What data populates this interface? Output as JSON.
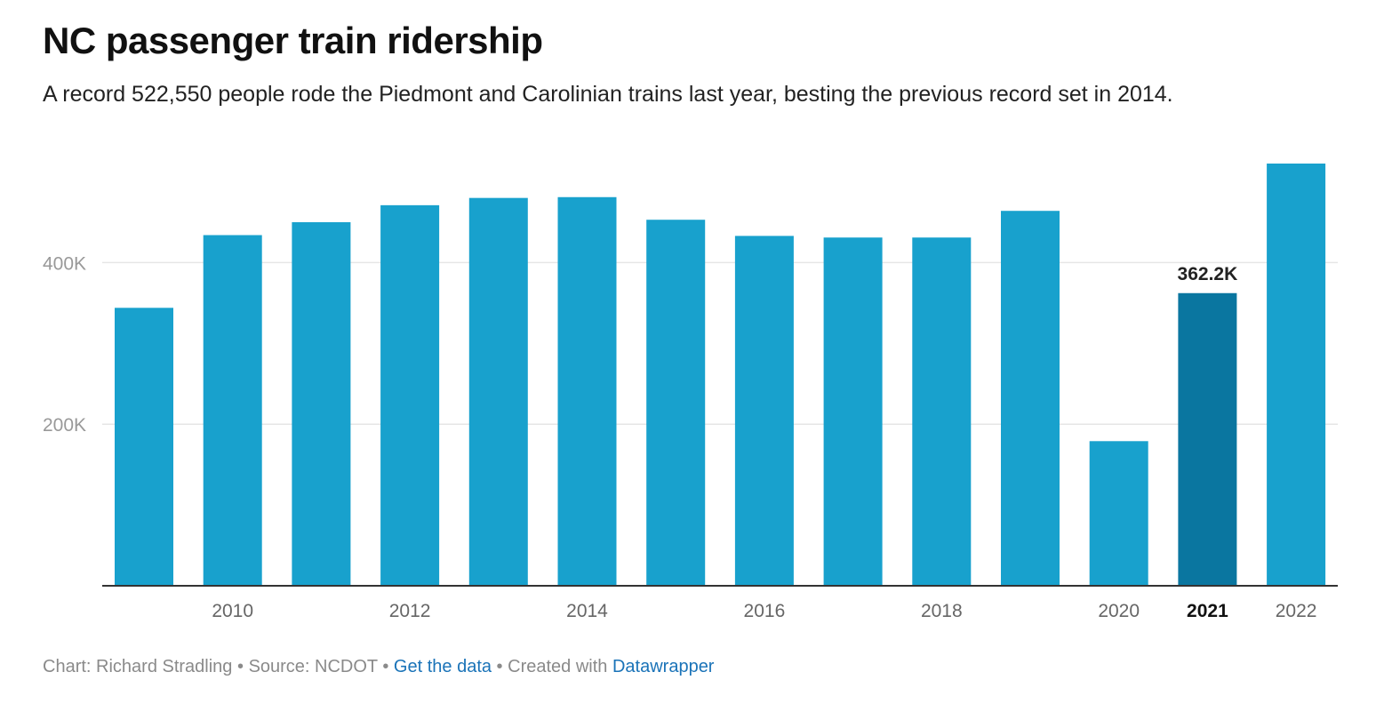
{
  "title": "NC passenger train ridership",
  "subtitle": "A record 522,550 people rode the Piedmont and Carolinian trains last year, besting the previous record set in 2014.",
  "chart_data": {
    "type": "bar",
    "title": "NC passenger train ridership",
    "subtitle": "A record 522,550 people rode the Piedmont and Carolinian trains last year, besting the previous record set in 2014.",
    "categories": [
      "2009",
      "2010",
      "2011",
      "2012",
      "2013",
      "2014",
      "2015",
      "2016",
      "2017",
      "2018",
      "2019",
      "2020",
      "2021",
      "2022"
    ],
    "values": [
      344000,
      434000,
      450000,
      471000,
      480000,
      481000,
      453000,
      433000,
      431000,
      431000,
      464000,
      179000,
      362200,
      522550
    ],
    "x_tick_labels": [
      "2010",
      "2012",
      "2014",
      "2016",
      "2018",
      "2020",
      "2021",
      "2022"
    ],
    "y_ticks": [
      200000,
      400000
    ],
    "y_tick_labels": [
      "200K",
      "400K"
    ],
    "ylim": [
      0,
      522550
    ],
    "highlight": {
      "category": "2021",
      "label": "362.2K"
    },
    "grid": true,
    "colors": {
      "bar": "#18a1cd",
      "highlight": "#0a76a0",
      "grid": "#e6e6e6",
      "axis": "#333333",
      "tick_text": "#999999"
    }
  },
  "footer": {
    "chart_credit": "Chart: Richard Stradling",
    "sep1": " • ",
    "source": "Source: NCDOT",
    "sep2": " • ",
    "get_data": "Get the data",
    "sep3": " • ",
    "created": "Created with ",
    "tool": "Datawrapper"
  }
}
